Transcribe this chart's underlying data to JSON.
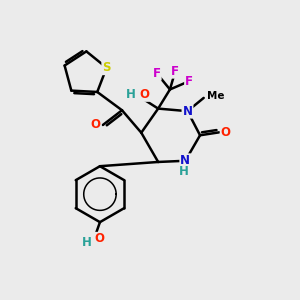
{
  "bg_color": "#ebebeb",
  "atom_colors": {
    "C": "#000000",
    "H": "#2aa198",
    "O": "#ff2200",
    "N": "#1111cc",
    "S": "#cccc00",
    "F": "#cc00cc"
  },
  "bond_color": "#000000",
  "bond_width": 1.8
}
